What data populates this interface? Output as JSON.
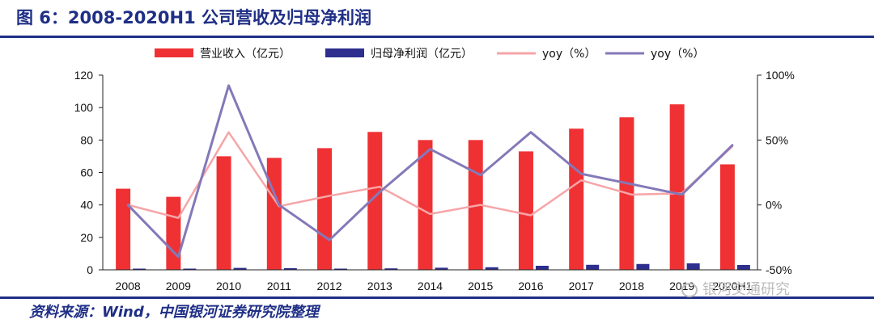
{
  "header": {
    "title": "图 6：2008-2020H1 公司营收及归母净利润"
  },
  "footer": {
    "source": "资料来源：Wind，中国银河证券研究院整理",
    "watermark": "银河交通研究"
  },
  "colors": {
    "revenue": "#ef3134",
    "profit": "#2d2e8e",
    "yoy_revenue": "#f6a5a8",
    "yoy_profit": "#8479b8",
    "rule": "#1f2f86"
  },
  "chart_data": {
    "type": "bar",
    "categories": [
      "2008",
      "2009",
      "2010",
      "2011",
      "2012",
      "2013",
      "2014",
      "2015",
      "2016",
      "2017",
      "2018",
      "2019",
      "2020H1"
    ],
    "ylim": [
      0,
      120
    ],
    "y_ticks": [
      "0",
      "20",
      "40",
      "60",
      "80",
      "100",
      "120"
    ],
    "y2lim": [
      -50,
      100
    ],
    "y2_ticks": [
      "-50%",
      "0%",
      "50%",
      "100%"
    ],
    "legend_position": "top",
    "series": [
      {
        "name": "营业收入（亿元）",
        "kind": "bar",
        "axis": "left",
        "values": [
          50,
          45,
          70,
          69,
          75,
          85,
          80,
          80,
          73,
          87,
          94,
          102,
          65
        ]
      },
      {
        "name": "归母净利润（亿元）",
        "kind": "bar",
        "axis": "left",
        "values": [
          0.5,
          0.3,
          1.2,
          1.0,
          0.7,
          0.9,
          1.3,
          1.6,
          2.5,
          3.1,
          3.6,
          4.0,
          3.0
        ]
      },
      {
        "name": "yoy（%）",
        "kind": "line",
        "axis": "right",
        "values": [
          0,
          -10,
          56,
          -1,
          7,
          14,
          -7,
          0,
          -8,
          19,
          8,
          9,
          45
        ]
      },
      {
        "name": "yoy（%）",
        "kind": "line",
        "axis": "right",
        "values": [
          0,
          -40,
          92,
          0,
          -27,
          10,
          43,
          23,
          56,
          24,
          16,
          8,
          46
        ]
      }
    ]
  }
}
